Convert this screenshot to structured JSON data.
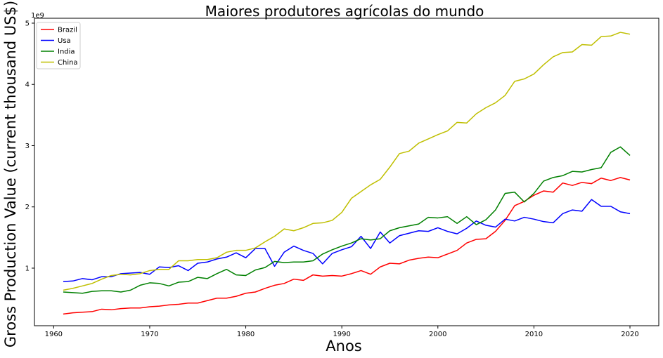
{
  "chart_data": {
    "type": "line",
    "title": "Maiores produtores agrícolas do mundo",
    "xlabel": "Anos",
    "ylabel": "Gross Production Value (current thousand US$)",
    "y_offset_label": "1e9",
    "xlim": [
      1958.0,
      2023.0
    ],
    "ylim": [
      0.06,
      5.08
    ],
    "y_units": "1e9",
    "grid": false,
    "legend_position": "top-left",
    "x_ticks": [
      1960,
      1970,
      1980,
      1990,
      2000,
      2010,
      2020
    ],
    "y_ticks": [
      1,
      2,
      3,
      4,
      5
    ],
    "x": [
      1961,
      1962,
      1963,
      1964,
      1965,
      1966,
      1967,
      1968,
      1969,
      1970,
      1971,
      1972,
      1973,
      1974,
      1975,
      1976,
      1977,
      1978,
      1979,
      1980,
      1981,
      1982,
      1983,
      1984,
      1985,
      1986,
      1987,
      1988,
      1989,
      1990,
      1991,
      1992,
      1993,
      1994,
      1995,
      1996,
      1997,
      1998,
      1999,
      2000,
      2001,
      2002,
      2003,
      2004,
      2005,
      2006,
      2007,
      2008,
      2009,
      2010,
      2011,
      2012,
      2013,
      2014,
      2015,
      2016,
      2017,
      2018,
      2019,
      2020
    ],
    "series": [
      {
        "name": "Brazil",
        "color": "#ff0000",
        "values": [
          0.25,
          0.27,
          0.28,
          0.29,
          0.33,
          0.32,
          0.34,
          0.35,
          0.35,
          0.37,
          0.38,
          0.4,
          0.41,
          0.43,
          0.43,
          0.47,
          0.51,
          0.51,
          0.54,
          0.59,
          0.61,
          0.67,
          0.72,
          0.75,
          0.82,
          0.8,
          0.89,
          0.87,
          0.88,
          0.87,
          0.91,
          0.96,
          0.9,
          1.02,
          1.08,
          1.07,
          1.13,
          1.16,
          1.18,
          1.17,
          1.23,
          1.29,
          1.41,
          1.47,
          1.48,
          1.6,
          1.78,
          2.02,
          2.09,
          2.19,
          2.26,
          2.24,
          2.39,
          2.35,
          2.4,
          2.38,
          2.47,
          2.43,
          2.48,
          2.44
        ]
      },
      {
        "name": "Usa",
        "color": "#0000ff",
        "values": [
          0.78,
          0.79,
          0.83,
          0.81,
          0.86,
          0.86,
          0.91,
          0.92,
          0.93,
          0.9,
          1.02,
          1.01,
          1.04,
          0.96,
          1.08,
          1.1,
          1.15,
          1.18,
          1.25,
          1.17,
          1.32,
          1.32,
          1.03,
          1.26,
          1.36,
          1.29,
          1.24,
          1.07,
          1.24,
          1.3,
          1.35,
          1.52,
          1.32,
          1.59,
          1.41,
          1.53,
          1.57,
          1.61,
          1.6,
          1.66,
          1.6,
          1.56,
          1.65,
          1.77,
          1.7,
          1.67,
          1.8,
          1.77,
          1.83,
          1.8,
          1.76,
          1.74,
          1.89,
          1.95,
          1.93,
          2.12,
          2.01,
          2.01,
          1.92,
          1.89
        ]
      },
      {
        "name": "India",
        "color": "#008000",
        "values": [
          0.61,
          0.6,
          0.59,
          0.62,
          0.63,
          0.63,
          0.61,
          0.64,
          0.72,
          0.76,
          0.75,
          0.71,
          0.77,
          0.78,
          0.85,
          0.83,
          0.91,
          0.98,
          0.89,
          0.88,
          0.97,
          1.01,
          1.11,
          1.09,
          1.1,
          1.1,
          1.12,
          1.23,
          1.3,
          1.36,
          1.41,
          1.48,
          1.46,
          1.48,
          1.61,
          1.66,
          1.69,
          1.72,
          1.83,
          1.82,
          1.84,
          1.73,
          1.84,
          1.71,
          1.79,
          1.95,
          2.22,
          2.24,
          2.08,
          2.22,
          2.42,
          2.48,
          2.51,
          2.58,
          2.57,
          2.61,
          2.64,
          2.89,
          2.98,
          2.84
        ]
      },
      {
        "name": "China",
        "color": "#bfbf00",
        "values": [
          0.64,
          0.67,
          0.71,
          0.75,
          0.82,
          0.88,
          0.9,
          0.89,
          0.91,
          0.96,
          0.98,
          0.98,
          1.12,
          1.12,
          1.14,
          1.14,
          1.17,
          1.26,
          1.29,
          1.29,
          1.33,
          1.43,
          1.52,
          1.64,
          1.61,
          1.66,
          1.73,
          1.74,
          1.78,
          1.91,
          2.14,
          2.25,
          2.36,
          2.45,
          2.65,
          2.87,
          2.91,
          3.04,
          3.11,
          3.18,
          3.24,
          3.38,
          3.37,
          3.52,
          3.62,
          3.7,
          3.82,
          4.05,
          4.09,
          4.17,
          4.32,
          4.45,
          4.52,
          4.53,
          4.65,
          4.64,
          4.78,
          4.79,
          4.85,
          4.82
        ]
      }
    ]
  }
}
